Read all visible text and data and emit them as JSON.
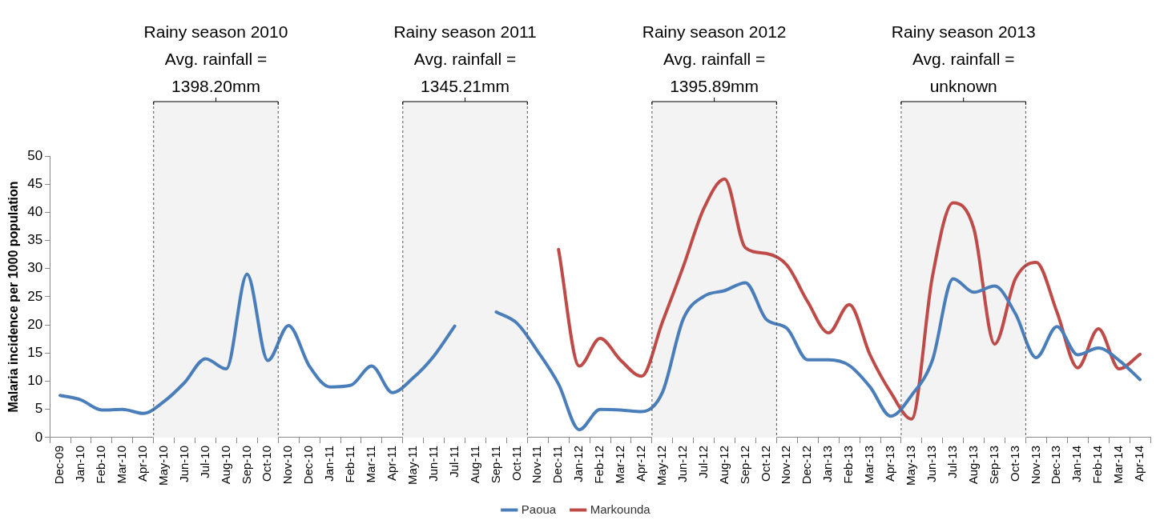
{
  "chart_data": {
    "type": "line",
    "ylabel": "Malaria incidence per 1000 population",
    "categories": [
      "Dec-09",
      "Jan-10",
      "Feb-10",
      "Mar-10",
      "Apr-10",
      "May-10",
      "Jun-10",
      "Jul-10",
      "Aug-10",
      "Sep-10",
      "Oct-10",
      "Nov-10",
      "Dec-10",
      "Jan-11",
      "Feb-11",
      "Mar-11",
      "Apr-11",
      "May-11",
      "Jun-11",
      "Jul-11",
      "Aug-11",
      "Sep-11",
      "Oct-11",
      "Nov-11",
      "Dec-11",
      "Jan-12",
      "Feb-12",
      "Mar-12",
      "Apr-12",
      "May-12",
      "Jun-12",
      "Jul-12",
      "Aug-12",
      "Sep-12",
      "Oct-12",
      "Nov-12",
      "Dec-12",
      "Jan-13",
      "Feb-13",
      "Mar-13",
      "Apr-13",
      "May-13",
      "Jun-13",
      "Jul-13",
      "Aug-13",
      "Sep-13",
      "Oct-13",
      "Nov-13",
      "Dec-13",
      "Jan-14",
      "Feb-14",
      "Mar-14",
      "Apr-14"
    ],
    "series": [
      {
        "name": "Paoua",
        "color": "#4a7ebb",
        "values": [
          7.5,
          6.7,
          4.9,
          5.0,
          4.3,
          6.4,
          9.8,
          14.0,
          12.2,
          29.0,
          13.7,
          19.9,
          12.7,
          9.0,
          9.3,
          12.7,
          8.0,
          10.6,
          14.5,
          19.8,
          null,
          22.3,
          20.3,
          15.3,
          9.5,
          1.4,
          5.0,
          4.9,
          4.6,
          8.0,
          21.0,
          25.1,
          26.1,
          27.5,
          21.0,
          19.4,
          13.8,
          13.8,
          12.8,
          9.0,
          3.8,
          7.5,
          13.7,
          28.2,
          25.8,
          26.9,
          22.0,
          14.2,
          19.7,
          14.7,
          15.9,
          13.7,
          10.3
        ]
      },
      {
        "name": "Markounda",
        "color": "#be4b48",
        "values": [
          null,
          null,
          null,
          null,
          null,
          null,
          null,
          null,
          null,
          null,
          null,
          null,
          null,
          null,
          null,
          null,
          null,
          null,
          null,
          null,
          null,
          null,
          null,
          null,
          33.4,
          12.7,
          17.6,
          13.7,
          10.9,
          20.5,
          30.3,
          40.7,
          45.9,
          33.7,
          32.7,
          30.6,
          24.1,
          18.6,
          23.6,
          14.7,
          8.0,
          3.3,
          28.5,
          41.7,
          37.1,
          16.6,
          28.2,
          31.1,
          22.3,
          12.4,
          19.3,
          12.2,
          14.8
        ]
      }
    ],
    "ylim": [
      0,
      50
    ],
    "yticks": [
      0,
      5,
      10,
      15,
      20,
      25,
      30,
      35,
      40,
      45,
      50
    ],
    "grid": false,
    "legend": "bottom",
    "marker": "none",
    "line_style": "solid",
    "bands": [
      {
        "axis": "x",
        "from": "May-10",
        "to": "Oct-10",
        "label": "Rainy season 2010\nAvg. rainfall =\n1398.20mm",
        "color": "#f3f3f3"
      },
      {
        "axis": "x",
        "from": "May-11",
        "to": "Oct-11",
        "label": "Rainy season 2011\nAvg. rainfall =\n1345.21mm",
        "color": "#f3f3f3"
      },
      {
        "axis": "x",
        "from": "May-12",
        "to": "Oct-12",
        "label": "Rainy season 2012\nAvg. rainfall =\n1395.89mm",
        "color": "#f3f3f3"
      },
      {
        "axis": "x",
        "from": "May-13",
        "to": "Oct-13",
        "label": "Rainy season 2013\nAvg. rainfall =\nunknown",
        "color": "#f3f3f3"
      }
    ]
  }
}
